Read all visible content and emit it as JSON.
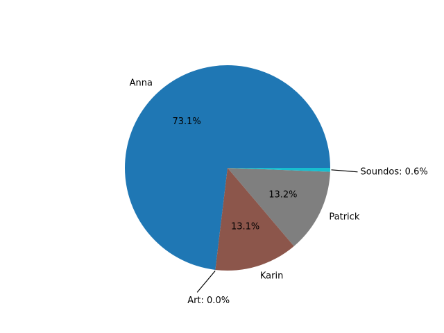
{
  "chart_data": {
    "type": "pie",
    "title": "",
    "start_angle_deg": 0,
    "direction": "counterclockwise",
    "slices": [
      {
        "label": "Anna",
        "value": 73.1,
        "pct_label": "73.1%",
        "color": "#1f77b4",
        "callout": ""
      },
      {
        "label": "Art",
        "value": 0.0,
        "pct_label": "",
        "color": "#d62728",
        "callout": "Art: 0.0%"
      },
      {
        "label": "Karin",
        "value": 13.1,
        "pct_label": "13.1%",
        "color": "#8c564b",
        "callout": ""
      },
      {
        "label": "Patrick",
        "value": 13.2,
        "pct_label": "13.2%",
        "color": "#7f7f7f",
        "callout": ""
      },
      {
        "label": "Soundos",
        "value": 0.6,
        "pct_label": "",
        "color": "#17becf",
        "callout": "Soundos: 0.6%"
      }
    ]
  }
}
